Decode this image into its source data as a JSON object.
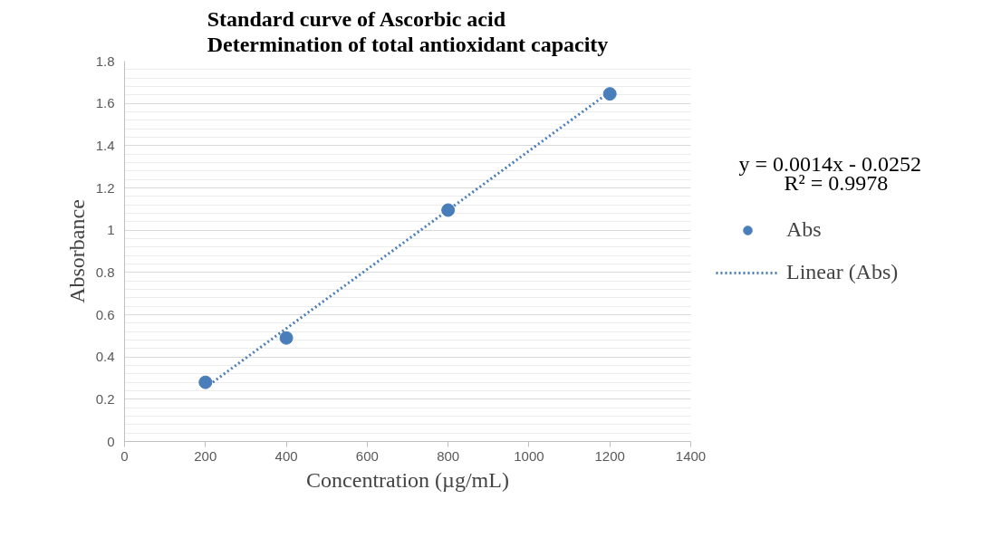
{
  "chart_data": {
    "type": "scatter",
    "title": "Standard curve of Ascorbic acid\nDetermination of total antioxidant capacity",
    "xlabel": "Concentration (µg/mL)",
    "ylabel": "Absorbance",
    "x": [
      200,
      400,
      800,
      1200
    ],
    "series": [
      {
        "name": "Abs",
        "color": "#4a7ebb",
        "marker": "circle",
        "values": [
          0.28,
          0.49,
          1.095,
          1.645
        ]
      },
      {
        "name": "Linear (Abs)",
        "type": "line",
        "color": "#4a7ebb",
        "line_style": "dotted",
        "marker": "none",
        "x": [
          200,
          1200
        ],
        "values": [
          0.255,
          1.655
        ]
      }
    ],
    "xlim": [
      0,
      1400
    ],
    "xticks": [
      0,
      200,
      400,
      600,
      800,
      1000,
      1200,
      1400
    ],
    "ylim": [
      0,
      1.8
    ],
    "yticks": [
      0,
      {
        "value": 0.2,
        "label": "0.2"
      },
      {
        "value": 0.4,
        "label": "0.4"
      },
      {
        "value": 0.6,
        "label": "0.6"
      },
      {
        "value": 0.8,
        "label": "0.8"
      },
      1,
      {
        "value": 1.2,
        "label": "1.2"
      },
      {
        "value": 1.4,
        "label": "1.4"
      },
      {
        "value": 1.6,
        "label": "1.6"
      },
      {
        "value": 1.8,
        "label": "1.8"
      }
    ],
    "grid": "y",
    "legend": "right",
    "annotations": [
      "y = 0.0014x - 0.0252",
      "R² = 0.9978"
    ]
  }
}
